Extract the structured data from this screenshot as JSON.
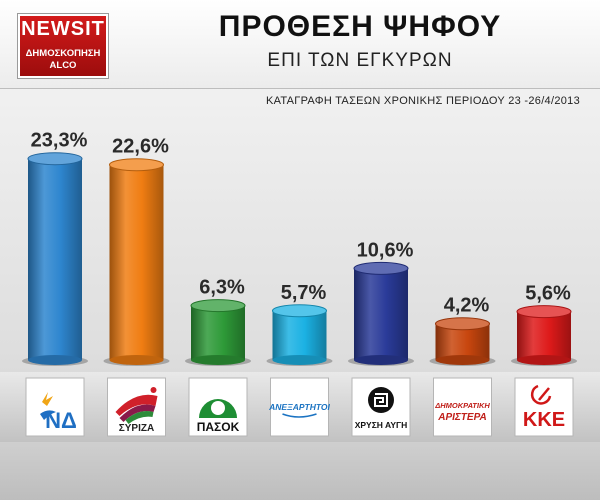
{
  "logo": {
    "brand": "NEWSIT",
    "line1": "ΔΗΜΟΣΚΟΠΗΣΗ",
    "line2": "ALCO"
  },
  "header": {
    "title": "ΠΡΟΘΕΣΗ ΨΗΦΟΥ",
    "subtitle": "ΕΠΙ ΤΩΝ ΕΓΚΥΡΩΝ",
    "period": "ΚΑΤΑΓΡΑΦΗ ΤΑΣΕΩΝ ΧΡΟΝΙΚΗΣ ΠΕΡΙΟΔΟΥ 23 -26/4/2013"
  },
  "chart_data": {
    "type": "bar",
    "title": "ΠΡΟΘΕΣΗ ΨΗΦΟΥ",
    "subtitle": "ΕΠΙ ΤΩΝ ΕΓΚΥΡΩΝ",
    "categories": [
      "ΝΔ",
      "ΣΥΡΙΖΑ",
      "ΠΑΣΟΚ",
      "ΑΝΕΞΑΡΤΗΤΟΙ ΕΛΛΗΝΕΣ",
      "ΧΡΥΣΗ ΑΥΓΗ",
      "ΔΗΜΟΚΡΑΤΙΚΗ ΑΡΙΣΤΕΡΑ",
      "ΚΚΕ"
    ],
    "values": [
      23.3,
      22.6,
      6.3,
      5.7,
      10.6,
      4.2,
      5.6
    ],
    "value_labels": [
      "23,3%",
      "22,6%",
      "6,3%",
      "5,7%",
      "10,6%",
      "4,2%",
      "5,6%"
    ],
    "colors": [
      "#2e86cf",
      "#f07d12",
      "#2e9a38",
      "#1bb1e3",
      "#2a3b99",
      "#c8460e",
      "#de1a1a"
    ],
    "logo_text": [
      "ΝΔ",
      "ΣΥΡΙΖΑ",
      "ΠΑΣΟΚ",
      "ΑΝΕΞΑΡΤΗΤΟΙ",
      "ΧΡΥΣΗ ΑΥΓΗ",
      "ΔΗΜΟΚΡΑΤΙΚΗ ΑΡΙΣΤΕΡΑ",
      "ΚΚΕ"
    ],
    "ylim": [
      0,
      25
    ],
    "grid": false,
    "legend": "none"
  }
}
